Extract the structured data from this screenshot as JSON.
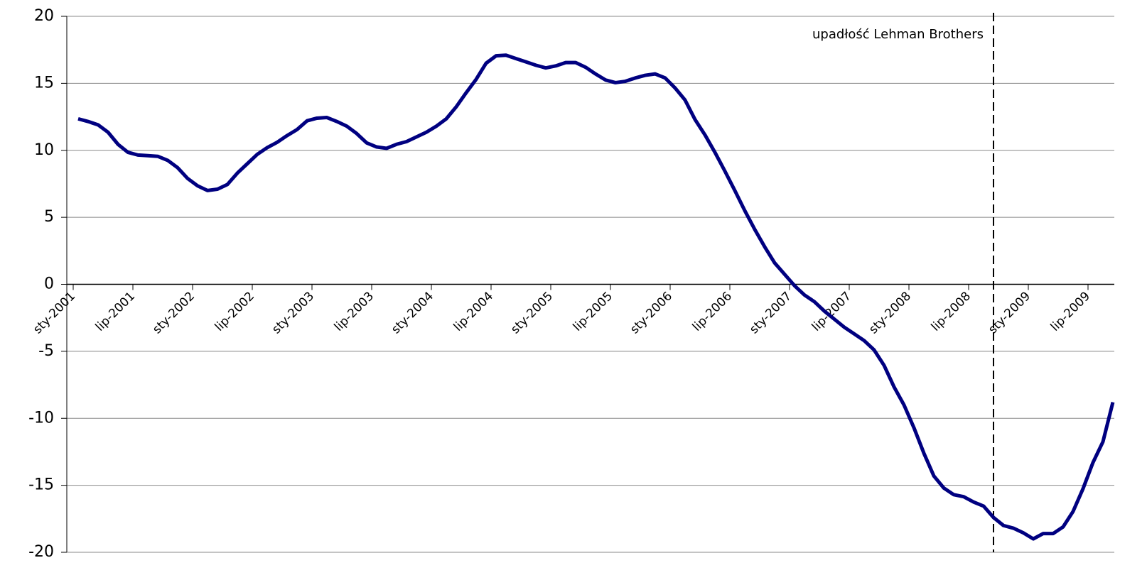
{
  "chart_data": {
    "type": "line",
    "color": "#000080",
    "grid": true,
    "categories": [
      "sty-2001",
      null,
      null,
      null,
      null,
      null,
      "lip-2001",
      null,
      null,
      null,
      null,
      null,
      "sty-2002",
      null,
      null,
      null,
      null,
      null,
      "lip-2002",
      null,
      null,
      null,
      null,
      null,
      "sty-2003",
      null,
      null,
      null,
      null,
      null,
      "lip-2003",
      null,
      null,
      null,
      null,
      null,
      "sty-2004",
      null,
      null,
      null,
      null,
      null,
      "lip-2004",
      null,
      null,
      null,
      null,
      null,
      "sty-2005",
      null,
      null,
      null,
      null,
      null,
      "lip-2005",
      null,
      null,
      null,
      null,
      null,
      "sty-2006",
      null,
      null,
      null,
      null,
      null,
      "lip-2006",
      null,
      null,
      null,
      null,
      null,
      "sty-2007",
      null,
      null,
      null,
      null,
      null,
      "lip-2007",
      null,
      null,
      null,
      null,
      null,
      "sty-2008",
      null,
      null,
      null,
      null,
      null,
      "lip-2008",
      null,
      null,
      null,
      null,
      null,
      "sty-2009",
      null,
      null,
      null,
      null,
      null,
      "lip-2009",
      null,
      null
    ],
    "values": [
      12.35,
      12.15,
      11.9,
      11.35,
      10.45,
      9.85,
      9.65,
      9.6,
      9.55,
      9.25,
      8.7,
      7.9,
      7.35,
      7.0,
      7.1,
      7.45,
      8.3,
      9.0,
      9.7,
      10.2,
      10.6,
      11.1,
      11.55,
      12.2,
      12.4,
      12.45,
      12.15,
      11.8,
      11.25,
      10.55,
      10.25,
      10.15,
      10.45,
      10.65,
      11.0,
      11.35,
      11.8,
      12.35,
      13.25,
      14.3,
      15.3,
      16.5,
      17.05,
      17.1,
      16.85,
      16.6,
      16.35,
      16.15,
      16.3,
      16.55,
      16.55,
      16.2,
      15.7,
      15.25,
      15.05,
      15.15,
      15.4,
      15.6,
      15.7,
      15.4,
      14.65,
      13.75,
      12.3,
      11.15,
      9.85,
      8.45,
      7.0,
      5.5,
      4.1,
      2.8,
      1.6,
      0.75,
      -0.1,
      -0.8,
      -1.3,
      -2.0,
      -2.6,
      -3.2,
      -3.7,
      -4.2,
      -4.9,
      -6.05,
      -7.65,
      -9.0,
      -10.7,
      -12.6,
      -14.3,
      -15.2,
      -15.7,
      -15.85,
      -16.25,
      -16.55,
      -17.4,
      -18.0,
      -18.2,
      -18.55,
      -19.0,
      -18.6,
      -18.6,
      -18.1,
      -16.95,
      -15.25,
      -13.3,
      -11.75,
      -8.8
    ],
    "ylim": [
      -20,
      20
    ],
    "yticks": [
      20,
      15,
      10,
      5,
      0,
      -5,
      -10,
      -15,
      -20
    ],
    "annotations": [
      {
        "text": "upadłość Lehman Brothers",
        "x_index": 92
      }
    ]
  }
}
